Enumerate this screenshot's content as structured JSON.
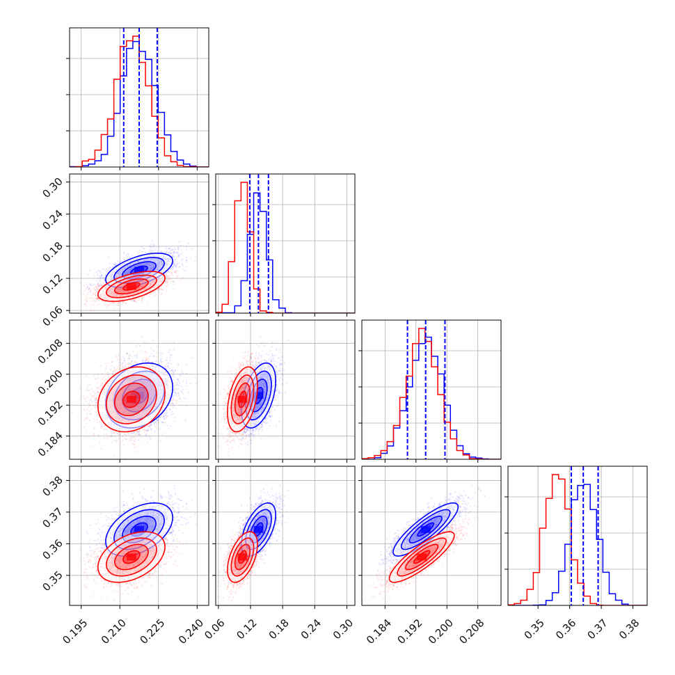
{
  "chart_data": {
    "type": "corner",
    "n_params": 4,
    "grid": true,
    "colors": {
      "series_a": "#0000ff",
      "series_b": "#ff0000"
    },
    "series": [
      {
        "color": "#0000ff",
        "mean": [
          0.2175,
          0.135,
          0.1945,
          0.3645
        ],
        "std": [
          0.0065,
          0.016,
          0.0042,
          0.0042
        ],
        "quantiles": [
          [
            0.2115,
            0.2175,
            0.2245
          ],
          [
            0.1186,
            0.1348,
            0.1535
          ],
          [
            0.1898,
            0.1945,
            0.1995
          ],
          [
            0.3605,
            0.3643,
            0.369
          ]
        ],
        "corr": [
          [
            1,
            0.55,
            0.25,
            0.45
          ],
          [
            0.55,
            1,
            0.45,
            0.55
          ],
          [
            0.25,
            0.45,
            1,
            0.85
          ],
          [
            0.45,
            0.55,
            0.85,
            1
          ]
        ]
      },
      {
        "color": "#ff0000",
        "mean": [
          0.2145,
          0.105,
          0.1935,
          0.3558
        ],
        "std": [
          0.0065,
          0.014,
          0.0042,
          0.004
        ],
        "corr": [
          [
            1,
            0.55,
            0.2,
            0.4
          ],
          [
            0.55,
            1,
            0.4,
            0.5
          ],
          [
            0.2,
            0.4,
            1,
            0.85
          ],
          [
            0.4,
            0.5,
            0.85,
            1
          ]
        ]
      }
    ],
    "axes": [
      {
        "range": [
          0.1905,
          0.2445
        ],
        "ticks": [
          0.195,
          0.21,
          0.225,
          0.24
        ],
        "tick_labels": [
          "0.195",
          "0.210",
          "0.225",
          "0.240"
        ]
      },
      {
        "range": [
          0.055,
          0.315
        ],
        "ticks": [
          0.06,
          0.12,
          0.18,
          0.24,
          0.3
        ],
        "tick_labels": [
          "0.06",
          "0.12",
          "0.18",
          "0.24",
          "0.30"
        ]
      },
      {
        "range": [
          0.178,
          0.214
        ],
        "ticks": [
          0.184,
          0.192,
          0.2,
          0.208
        ],
        "tick_labels": [
          "0.184",
          "0.192",
          "0.200",
          "0.208"
        ]
      },
      {
        "range": [
          0.3405,
          0.3845
        ],
        "ticks": [
          0.35,
          0.36,
          0.37,
          0.38
        ],
        "tick_labels": [
          "0.35",
          "0.36",
          "0.37",
          "0.38"
        ]
      }
    ]
  }
}
